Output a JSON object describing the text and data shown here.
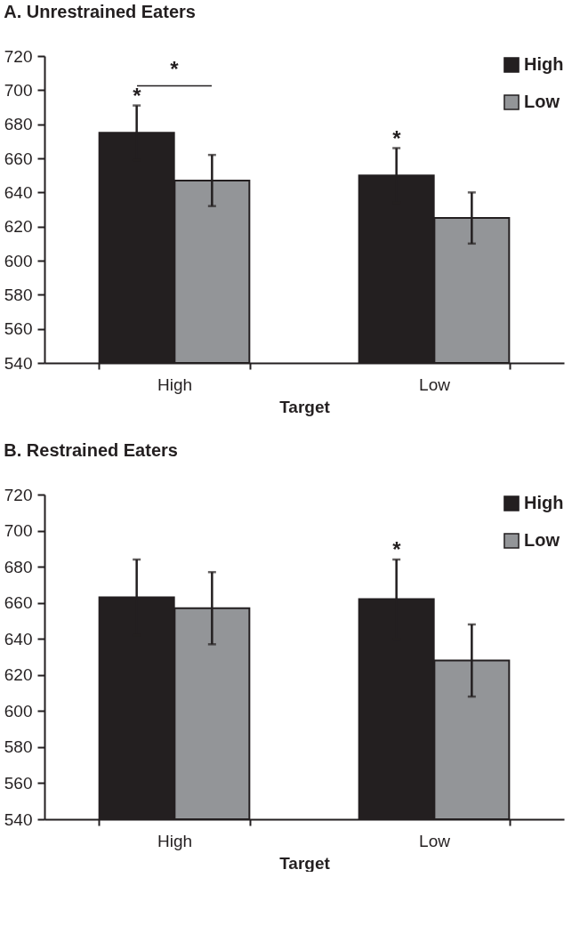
{
  "chart_data": [
    {
      "type": "bar",
      "title": "A.  Unrestrained Eaters",
      "xlabel": "Target",
      "categories": [
        "High",
        "Low"
      ],
      "series": [
        {
          "name": "High",
          "color": "#231f20",
          "values": [
            675,
            650
          ],
          "errors": [
            16,
            16
          ]
        },
        {
          "name": "Low",
          "color": "#939598",
          "values": [
            647,
            625
          ],
          "errors": [
            15,
            15
          ]
        }
      ],
      "ylim": [
        540,
        720
      ],
      "yticks": [
        540,
        560,
        580,
        600,
        620,
        640,
        660,
        680,
        700,
        720
      ],
      "grid": false,
      "legend": "top right",
      "annotations": [
        {
          "text": "*",
          "x": "High",
          "y": 675
        },
        "*",
        {
          "text": "*",
          "x": "Low",
          "y": 650
        }
      ]
    },
    {
      "type": "bar",
      "title": "B.  Restrained Eaters",
      "xlabel": "Target",
      "categories": [
        "High",
        "Low"
      ],
      "series": [
        {
          "name": "High",
          "color": "#231f20",
          "values": [
            663,
            662
          ],
          "errors": [
            21,
            22
          ]
        },
        {
          "name": "Low",
          "color": "#939598",
          "values": [
            657,
            628
          ],
          "errors": [
            20,
            20
          ]
        }
      ],
      "ylim": [
        540,
        720
      ],
      "yticks": [
        540,
        560,
        580,
        600,
        620,
        640,
        660,
        680,
        700,
        720
      ],
      "grid": false,
      "legend": "top right",
      "annotations": [
        {
          "text": "*",
          "x": "Low",
          "y": 662
        }
      ]
    }
  ]
}
